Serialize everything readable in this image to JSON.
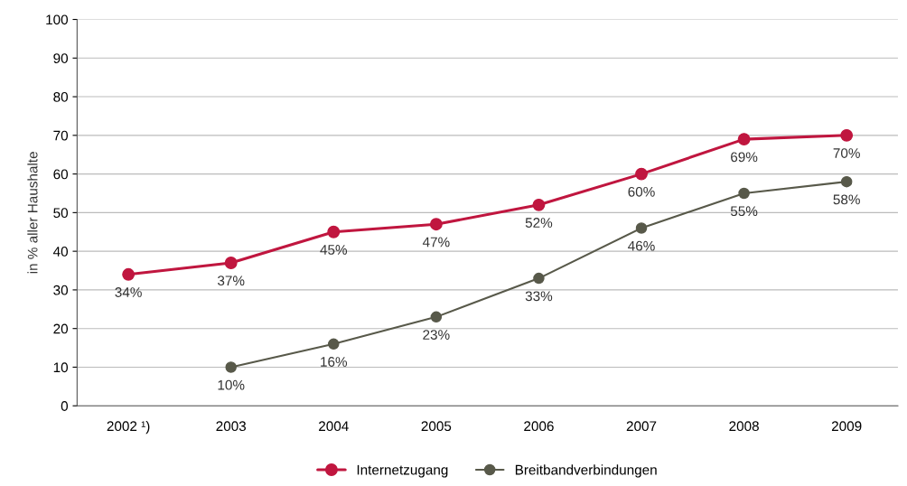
{
  "chart_data": {
    "type": "line",
    "ylabel": "in % aller Haushalte",
    "categories": [
      "2002 ¹)",
      "2003",
      "2004",
      "2005",
      "2006",
      "2007",
      "2008",
      "2009"
    ],
    "series": [
      {
        "name": "Internetzugang",
        "color": "#c0163f",
        "values": [
          34,
          37,
          45,
          47,
          52,
          60,
          69,
          70
        ],
        "value_labels": [
          "34%",
          "37%",
          "45%",
          "47%",
          "52%",
          "60%",
          "69%",
          "70%"
        ]
      },
      {
        "name": "Breitbandverbindungen",
        "color": "#58594a",
        "values": [
          null,
          10,
          16,
          23,
          33,
          46,
          55,
          58
        ],
        "value_labels": [
          null,
          "10%",
          "16%",
          "23%",
          "33%",
          "46%",
          "55%",
          "58%"
        ]
      }
    ],
    "ylim": [
      0,
      100
    ],
    "yticks": [
      0,
      10,
      20,
      30,
      40,
      50,
      60,
      70,
      80,
      90,
      100
    ],
    "grid": "y",
    "legend": "bottom",
    "marker": "circle",
    "line_style": "solid"
  }
}
